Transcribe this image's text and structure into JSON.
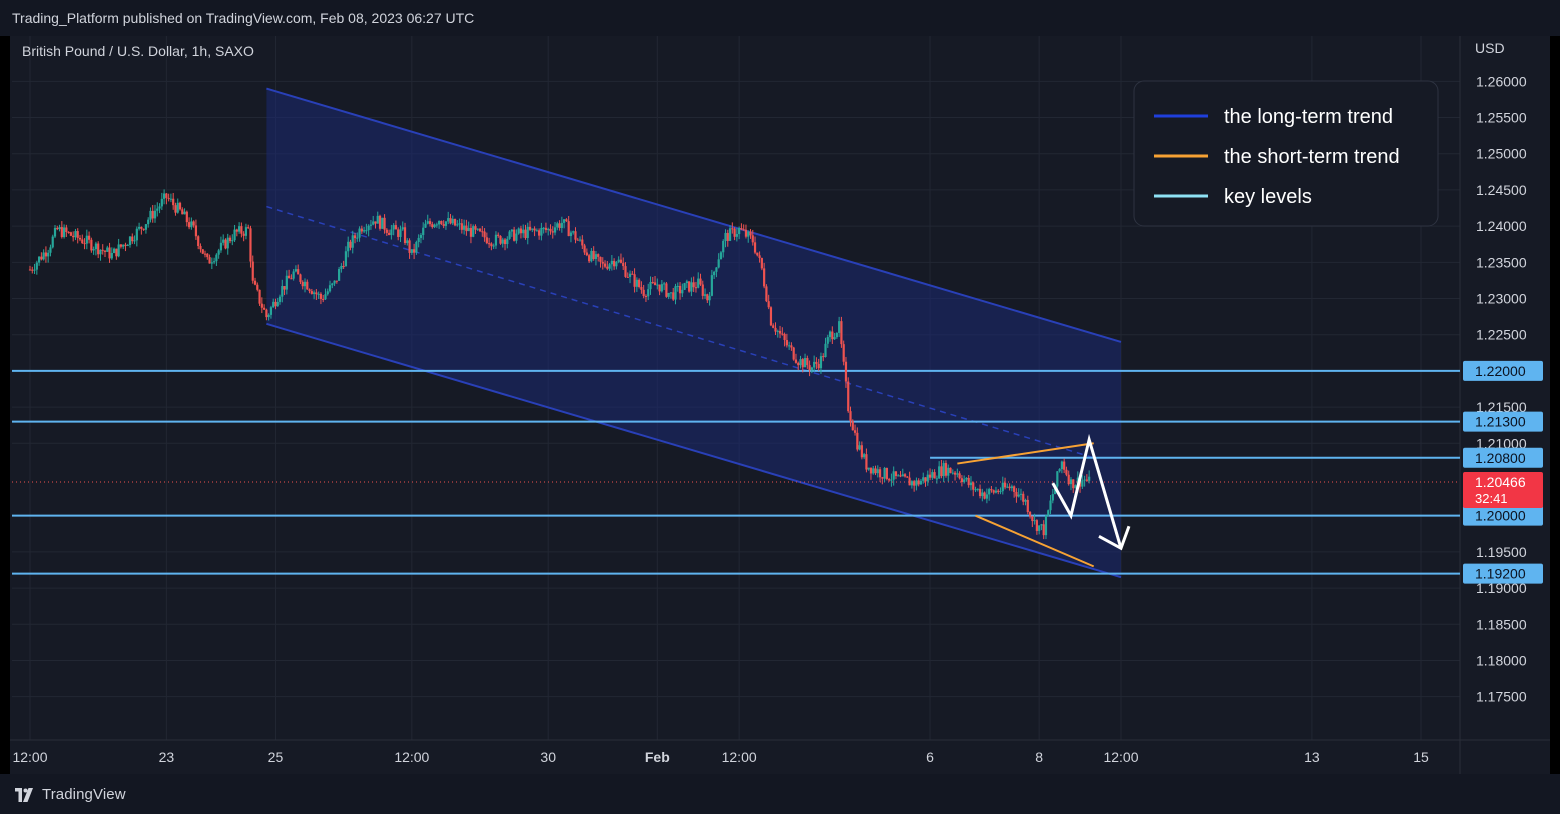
{
  "header": {
    "published": "Trading_Platform published on TradingView.com, Feb 08, 2023 06:27 UTC"
  },
  "footer": {
    "brand": "TradingView",
    "logo_icon": "tradingview-logo-icon"
  },
  "colors": {
    "background": "#161a25",
    "channel_fill": "#1c2a73",
    "channel_line": "#2940b8",
    "short_trend": "#f7a234",
    "key_level": "#5fb4f0",
    "up_candle": "#26a69a",
    "down_candle": "#ef5350",
    "last_price_bg": "#f23645",
    "arrow": "#ffffff"
  },
  "chart_data": {
    "type": "candlestick",
    "symbol_title": "British Pound / U.S. Dollar, 1h, SAXO",
    "currency": "USD",
    "ylim": [
      1.1715,
      1.2635
    ],
    "y_ticks": [
      "1.26000",
      "1.25500",
      "1.25000",
      "1.24500",
      "1.24000",
      "1.23500",
      "1.23000",
      "1.22500",
      "1.21500",
      "1.21000",
      "1.19500",
      "1.19000",
      "1.18500",
      "1.18000",
      "1.17500"
    ],
    "x_ticks": [
      {
        "label": "12:00",
        "date": "Jan 20 12:00"
      },
      {
        "label": "23",
        "date": "Jan 23"
      },
      {
        "label": "25",
        "date": "Jan 25"
      },
      {
        "label": "12:00",
        "date": "Jan 27 12:00"
      },
      {
        "label": "30",
        "date": "Jan 30"
      },
      {
        "label": "Feb",
        "date": "Feb 01",
        "bold": true
      },
      {
        "label": "12:00",
        "date": "Feb 02 12:00"
      },
      {
        "label": "6",
        "date": "Feb 06"
      },
      {
        "label": "8",
        "date": "Feb 08"
      },
      {
        "label": "12:00",
        "date": "Feb 09 12:00"
      },
      {
        "label": "13",
        "date": "Feb 13"
      },
      {
        "label": "15",
        "date": "Feb 15"
      }
    ],
    "key_levels": [
      {
        "value": 1.22,
        "label": "1.22000",
        "from": "Jan 20 12:00"
      },
      {
        "value": 1.213,
        "label": "1.21300",
        "from": "Jan 20 12:00"
      },
      {
        "value": 1.208,
        "label": "1.20800",
        "from": "Feb 06"
      },
      {
        "value": 1.2,
        "label": "1.20000",
        "from": "Jan 20 12:00"
      },
      {
        "value": 1.192,
        "label": "1.19200",
        "from": "Jan 20 12:00"
      }
    ],
    "last_price": {
      "value": 1.20466,
      "label": "1.20466",
      "countdown": "32:41"
    },
    "channel": {
      "upper": [
        [
          "Jan 24 20:00",
          1.259
        ],
        [
          "Feb 09 12:00",
          1.224
        ]
      ],
      "lower": [
        [
          "Jan 24 20:00",
          1.2265
        ],
        [
          "Feb 09 12:00",
          1.1915
        ]
      ],
      "mid_dashed": [
        [
          "Jan 24 20:00",
          1.2427
        ],
        [
          "Feb 09 00:00",
          1.208
        ]
      ]
    },
    "short_term_trend": {
      "upper": [
        [
          "Feb 06 12:00",
          1.2072
        ],
        [
          "Feb 09 00:00",
          1.21
        ]
      ],
      "lower": [
        [
          "Feb 06 20:00",
          1.2
        ],
        [
          "Feb 09 00:00",
          1.193
        ]
      ]
    },
    "projection_arrow": [
      [
        "Feb 08 06:00",
        1.2045
      ],
      [
        "Feb 08 14:00",
        1.2
      ],
      [
        "Feb 08 22:00",
        1.2105
      ],
      [
        "Feb 09 12:00",
        1.1955
      ]
    ],
    "ohlc_path": [
      [
        "Jan 20 12:00",
        1.234
      ],
      [
        "Jan 20 20:00",
        1.237
      ],
      [
        "Jan 21 00:00",
        1.2395
      ],
      [
        "Jan 21 12:00",
        1.238
      ],
      [
        "Jan 22 00:00",
        1.236
      ],
      [
        "Jan 22 12:00",
        1.2395
      ],
      [
        "Jan 23 00:00",
        1.244
      ],
      [
        "Jan 23 06:00",
        1.242
      ],
      [
        "Jan 23 12:00",
        1.2395
      ],
      [
        "Jan 23 18:00",
        1.235
      ],
      [
        "Jan 24 00:00",
        1.237
      ],
      [
        "Jan 24 06:00",
        1.239
      ],
      [
        "Jan 24 12:00",
        1.2395
      ],
      [
        "Jan 24 14:00",
        1.232
      ],
      [
        "Jan 24 20:00",
        1.2275
      ],
      [
        "Jan 25 02:00",
        1.231
      ],
      [
        "Jan 25 08:00",
        1.2335
      ],
      [
        "Jan 25 14:00",
        1.232
      ],
      [
        "Jan 25 20:00",
        1.23
      ],
      [
        "Jan 26 02:00",
        1.232
      ],
      [
        "Jan 26 08:00",
        1.237
      ],
      [
        "Jan 26 14:00",
        1.24
      ],
      [
        "Jan 26 20:00",
        1.241
      ],
      [
        "Jan 27 02:00",
        1.2395
      ],
      [
        "Jan 27 08:00",
        1.239
      ],
      [
        "Jan 27 12:00",
        1.236
      ],
      [
        "Jan 27 18:00",
        1.24
      ],
      [
        "Jan 28 00:00",
        1.241
      ],
      [
        "Jan 28 12:00",
        1.2395
      ],
      [
        "Jan 29 00:00",
        1.238
      ],
      [
        "Jan 29 12:00",
        1.239
      ],
      [
        "Jan 30 00:00",
        1.2395
      ],
      [
        "Jan 30 06:00",
        1.2405
      ],
      [
        "Jan 30 12:00",
        1.2385
      ],
      [
        "Jan 30 18:00",
        1.236
      ],
      [
        "Jan 31 00:00",
        1.2345
      ],
      [
        "Jan 31 06:00",
        1.2355
      ],
      [
        "Jan 31 12:00",
        1.233
      ],
      [
        "Jan 31 18:00",
        1.231
      ],
      [
        "Feb 01 00:00",
        1.232
      ],
      [
        "Feb 01 06:00",
        1.2305
      ],
      [
        "Feb 01 12:00",
        1.2315
      ],
      [
        "Feb 01 18:00",
        1.232
      ],
      [
        "Feb 01 22:00",
        1.23
      ],
      [
        "Feb 02 02:00",
        1.235
      ],
      [
        "Feb 02 06:00",
        1.2385
      ],
      [
        "Feb 02 12:00",
        1.2395
      ],
      [
        "Feb 02 18:00",
        1.238
      ],
      [
        "Feb 02 22:00",
        1.234
      ],
      [
        "Feb 03 02:00",
        1.227
      ],
      [
        "Feb 03 08:00",
        1.224
      ],
      [
        "Feb 03 14:00",
        1.2215
      ],
      [
        "Feb 03 20:00",
        1.2205
      ],
      [
        "Feb 04 00:00",
        1.2215
      ],
      [
        "Feb 04 04:00",
        1.225
      ],
      [
        "Feb 04 08:00",
        1.226
      ],
      [
        "Feb 04 12:00",
        1.215
      ],
      [
        "Feb 04 16:00",
        1.21
      ],
      [
        "Feb 04 20:00",
        1.207
      ],
      [
        "Feb 05 02:00",
        1.206
      ],
      [
        "Feb 05 10:00",
        1.205
      ],
      [
        "Feb 05 18:00",
        1.2045
      ],
      [
        "Feb 06 00:00",
        1.2055
      ],
      [
        "Feb 06 06:00",
        1.2065
      ],
      [
        "Feb 06 12:00",
        1.206
      ],
      [
        "Feb 06 18:00",
        1.204
      ],
      [
        "Feb 07 00:00",
        1.203
      ],
      [
        "Feb 07 06:00",
        1.2035
      ],
      [
        "Feb 07 12:00",
        1.204
      ],
      [
        "Feb 07 18:00",
        1.202
      ],
      [
        "Feb 07 22:00",
        1.199
      ],
      [
        "Feb 08 02:00",
        1.198
      ],
      [
        "Feb 08 06:00",
        1.203
      ],
      [
        "Feb 08 10:00",
        1.2075
      ],
      [
        "Feb 08 14:00",
        1.2045
      ],
      [
        "Feb 08 20:00",
        1.205
      ],
      [
        "Feb 08 22:00",
        1.2046
      ]
    ]
  },
  "legend": {
    "items": [
      {
        "label": "the long-term trend",
        "color": "#1f3fdc"
      },
      {
        "label": "the short-term trend",
        "color": "#f7a234"
      },
      {
        "label": "key levels",
        "color": "#8fe2f5"
      }
    ]
  }
}
